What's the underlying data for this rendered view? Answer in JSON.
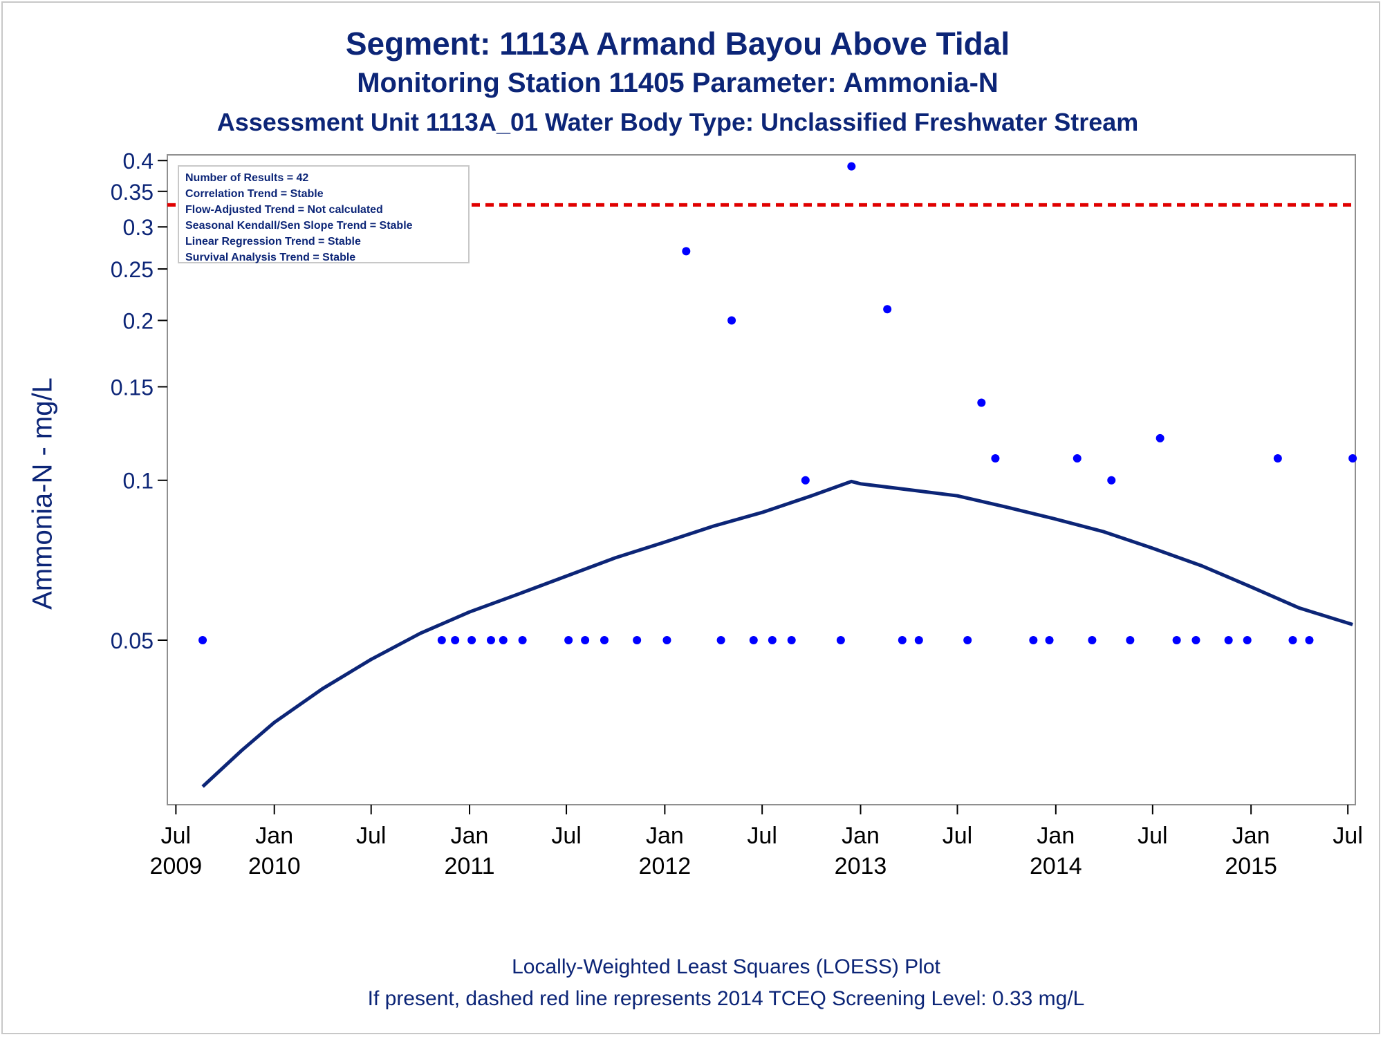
{
  "chart_data": {
    "type": "scatter",
    "title": "Segment: 1113A  Armand Bayou Above Tidal",
    "subtitle": "Monitoring Station 11405 Parameter: Ammonia-N",
    "subtitle2": "Assessment Unit 1113A_01   Water Body Type: Unclassified Freshwater Stream",
    "ylabel": "Ammonia-N - mg/L",
    "xlabel": "",
    "y_scale": "log",
    "ylim": [
      0.0245,
      0.41
    ],
    "xlim": [
      "2009-06-15",
      "2015-07-15"
    ],
    "grid": false,
    "y_ticks": [
      "0.05",
      "0.1",
      "0.15",
      "0.2",
      "0.25",
      "0.3",
      "0.35",
      "0.4"
    ],
    "x_ticks": [
      {
        "date": "2009-07-01",
        "month": "Jul",
        "year": "2009"
      },
      {
        "date": "2010-01-01",
        "month": "Jan",
        "year": "2010"
      },
      {
        "date": "2010-07-01",
        "month": "Jul",
        "year": ""
      },
      {
        "date": "2011-01-01",
        "month": "Jan",
        "year": "2011"
      },
      {
        "date": "2011-07-01",
        "month": "Jul",
        "year": ""
      },
      {
        "date": "2012-01-01",
        "month": "Jan",
        "year": "2012"
      },
      {
        "date": "2012-07-01",
        "month": "Jul",
        "year": ""
      },
      {
        "date": "2013-01-01",
        "month": "Jan",
        "year": "2013"
      },
      {
        "date": "2013-07-01",
        "month": "Jul",
        "year": ""
      },
      {
        "date": "2014-01-01",
        "month": "Jan",
        "year": "2014"
      },
      {
        "date": "2014-07-01",
        "month": "Jul",
        "year": ""
      },
      {
        "date": "2015-01-01",
        "month": "Jan",
        "year": "2015"
      },
      {
        "date": "2015-07-01",
        "month": "Jul",
        "year": ""
      }
    ],
    "legend_box": {
      "placement": "top-left",
      "lines": [
        "Number of Results = 42",
        "Correlation Trend = Stable",
        "Flow-Adjusted Trend = Not calculated",
        "Seasonal Kendall/Sen Slope Trend = Stable",
        "Linear Regression Trend = Stable",
        "Survival Analysis Trend = Stable"
      ]
    },
    "screening_level": {
      "value": 0.33,
      "style": "dashed",
      "color": "#e00000"
    },
    "series": [
      {
        "kind": "scatter",
        "color": "#0000ff",
        "points": [
          {
            "x": "2009-08-20",
            "y": 0.05
          },
          {
            "x": "2010-11-10",
            "y": 0.05
          },
          {
            "x": "2010-12-05",
            "y": 0.05
          },
          {
            "x": "2011-01-05",
            "y": 0.05
          },
          {
            "x": "2011-02-10",
            "y": 0.05
          },
          {
            "x": "2011-03-05",
            "y": 0.05
          },
          {
            "x": "2011-04-10",
            "y": 0.05
          },
          {
            "x": "2011-07-05",
            "y": 0.05
          },
          {
            "x": "2011-08-05",
            "y": 0.05
          },
          {
            "x": "2011-09-10",
            "y": 0.05
          },
          {
            "x": "2011-11-10",
            "y": 0.05
          },
          {
            "x": "2012-01-05",
            "y": 0.05
          },
          {
            "x": "2012-02-10",
            "y": 0.27
          },
          {
            "x": "2012-04-15",
            "y": 0.05
          },
          {
            "x": "2012-05-05",
            "y": 0.2
          },
          {
            "x": "2012-06-15",
            "y": 0.05
          },
          {
            "x": "2012-07-20",
            "y": 0.05
          },
          {
            "x": "2012-08-25",
            "y": 0.05
          },
          {
            "x": "2012-09-20",
            "y": 0.1
          },
          {
            "x": "2012-11-25",
            "y": 0.05
          },
          {
            "x": "2012-12-15",
            "y": 0.39
          },
          {
            "x": "2013-02-20",
            "y": 0.21
          },
          {
            "x": "2013-03-20",
            "y": 0.05
          },
          {
            "x": "2013-04-20",
            "y": 0.05
          },
          {
            "x": "2013-07-20",
            "y": 0.05
          },
          {
            "x": "2013-08-15",
            "y": 0.14
          },
          {
            "x": "2013-09-10",
            "y": 0.11
          },
          {
            "x": "2013-11-20",
            "y": 0.05
          },
          {
            "x": "2013-12-20",
            "y": 0.05
          },
          {
            "x": "2014-02-10",
            "y": 0.11
          },
          {
            "x": "2014-03-10",
            "y": 0.05
          },
          {
            "x": "2014-04-15",
            "y": 0.1
          },
          {
            "x": "2014-05-20",
            "y": 0.05
          },
          {
            "x": "2014-07-15",
            "y": 0.12
          },
          {
            "x": "2014-08-15",
            "y": 0.05
          },
          {
            "x": "2014-09-20",
            "y": 0.05
          },
          {
            "x": "2014-11-20",
            "y": 0.05
          },
          {
            "x": "2014-12-25",
            "y": 0.05
          },
          {
            "x": "2015-02-20",
            "y": 0.11
          },
          {
            "x": "2015-03-20",
            "y": 0.05
          },
          {
            "x": "2015-04-20",
            "y": 0.05
          },
          {
            "x": "2015-07-10",
            "y": 0.11
          }
        ]
      },
      {
        "kind": "line",
        "label": "LOESS",
        "color": "#0c2577",
        "points": [
          {
            "x": "2009-08-20",
            "y": 0.0265
          },
          {
            "x": "2009-11-01",
            "y": 0.031
          },
          {
            "x": "2010-01-01",
            "y": 0.035
          },
          {
            "x": "2010-04-01",
            "y": 0.0405
          },
          {
            "x": "2010-07-01",
            "y": 0.046
          },
          {
            "x": "2010-10-01",
            "y": 0.0515
          },
          {
            "x": "2011-01-01",
            "y": 0.0565
          },
          {
            "x": "2011-04-01",
            "y": 0.061
          },
          {
            "x": "2011-07-01",
            "y": 0.066
          },
          {
            "x": "2011-10-01",
            "y": 0.0715
          },
          {
            "x": "2012-01-01",
            "y": 0.0765
          },
          {
            "x": "2012-04-01",
            "y": 0.082
          },
          {
            "x": "2012-07-01",
            "y": 0.087
          },
          {
            "x": "2012-10-01",
            "y": 0.0935
          },
          {
            "x": "2012-12-15",
            "y": 0.0995
          },
          {
            "x": "2013-01-01",
            "y": 0.0985
          },
          {
            "x": "2013-04-01",
            "y": 0.096
          },
          {
            "x": "2013-07-01",
            "y": 0.0935
          },
          {
            "x": "2013-10-01",
            "y": 0.089
          },
          {
            "x": "2014-01-01",
            "y": 0.0845
          },
          {
            "x": "2014-04-01",
            "y": 0.08
          },
          {
            "x": "2014-07-01",
            "y": 0.0745
          },
          {
            "x": "2014-10-01",
            "y": 0.069
          },
          {
            "x": "2015-01-01",
            "y": 0.063
          },
          {
            "x": "2015-04-01",
            "y": 0.0575
          },
          {
            "x": "2015-07-10",
            "y": 0.0535
          }
        ]
      }
    ]
  },
  "footer": {
    "line1": "Locally-Weighted Least Squares (LOESS) Plot",
    "line2": "If present, dashed red line represents 2014 TCEQ Screening Level: 0.33 mg/L"
  }
}
